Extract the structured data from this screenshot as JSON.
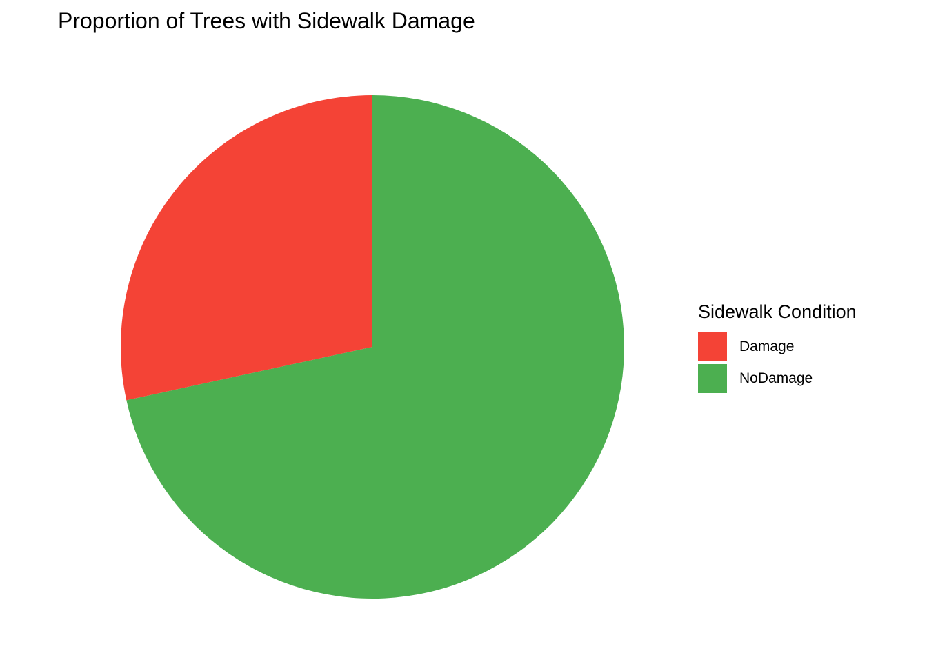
{
  "chart_data": {
    "type": "pie",
    "title": "Proportion of Trees with Sidewalk Damage",
    "legend_title": "Sidewalk Condition",
    "legend_position": "right",
    "slices": [
      {
        "label": "Damage",
        "value": 0.284,
        "color": "#F44336"
      },
      {
        "label": "NoDamage",
        "value": 0.716,
        "color": "#4CAF50"
      }
    ]
  }
}
